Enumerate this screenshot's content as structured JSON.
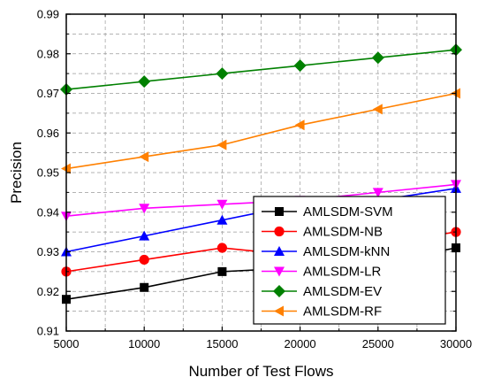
{
  "chart_data": {
    "type": "line",
    "xlabel": "Number of Test Flows",
    "ylabel": "Precision",
    "x": [
      5000,
      10000,
      15000,
      20000,
      25000,
      30000
    ],
    "xlim": [
      5000,
      30000
    ],
    "ylim": [
      0.91,
      0.99
    ],
    "xticks": [
      5000,
      10000,
      15000,
      20000,
      25000,
      30000
    ],
    "xtick_labels": [
      "5000",
      "10000",
      "15000",
      "20000",
      "25000",
      "30000"
    ],
    "yticks": [
      0.91,
      0.92,
      0.93,
      0.94,
      0.95,
      0.96,
      0.97,
      0.98,
      0.99
    ],
    "ytick_labels": [
      "0.91",
      "0.92",
      "0.93",
      "0.94",
      "0.95",
      "0.96",
      "0.97",
      "0.98",
      "0.99"
    ],
    "grid": true,
    "legend_position": "lower-right",
    "series": [
      {
        "name": "AMLSDM-SVM",
        "color": "#000000",
        "marker": "square",
        "values": [
          0.918,
          0.921,
          0.925,
          0.926,
          0.927,
          0.931
        ]
      },
      {
        "name": "AMLSDM-NB",
        "color": "#ff0000",
        "marker": "circle",
        "values": [
          0.925,
          0.928,
          0.931,
          0.929,
          0.932,
          0.935
        ]
      },
      {
        "name": "AMLSDM-kNN",
        "color": "#0000ff",
        "marker": "triangle-up",
        "values": [
          0.93,
          0.934,
          0.938,
          0.942,
          0.943,
          0.946
        ]
      },
      {
        "name": "AMLSDM-LR",
        "color": "#ff00ff",
        "marker": "triangle-down",
        "values": [
          0.939,
          0.941,
          0.942,
          0.943,
          0.945,
          0.947
        ]
      },
      {
        "name": "AMLSDM-EV",
        "color": "#008000",
        "marker": "diamond",
        "values": [
          0.971,
          0.973,
          0.975,
          0.977,
          0.979,
          0.981
        ]
      },
      {
        "name": "AMLSDM-RF",
        "color": "#ff8000",
        "marker": "triangle-left",
        "values": [
          0.951,
          0.954,
          0.957,
          0.962,
          0.966,
          0.97
        ]
      }
    ]
  }
}
